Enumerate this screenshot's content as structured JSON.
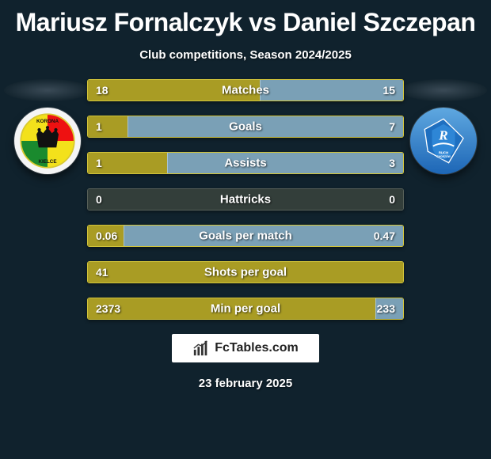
{
  "title": "Mariusz Fornalczyk vs Daniel Szczepan",
  "subtitle": "Club competitions, Season 2024/2025",
  "date": "23 february 2025",
  "footer_brand": "FcTables.com",
  "colors": {
    "background": "#10222d",
    "left_fill": "#a99c24",
    "left_border": "#d2c43a",
    "right_fill": "#7aa0b6",
    "right_border": "#a6c3d3",
    "neutral_fill": "#333e3a",
    "neutral_border": "#576059"
  },
  "bars": [
    {
      "label": "Matches",
      "left_val": "18",
      "right_val": "15",
      "left_pct": 54.5,
      "right_pct": 45.5,
      "style": "color"
    },
    {
      "label": "Goals",
      "left_val": "1",
      "right_val": "7",
      "left_pct": 12.5,
      "right_pct": 87.5,
      "style": "color"
    },
    {
      "label": "Assists",
      "left_val": "1",
      "right_val": "3",
      "left_pct": 25.0,
      "right_pct": 75.0,
      "style": "color"
    },
    {
      "label": "Hattricks",
      "left_val": "0",
      "right_val": "0",
      "left_pct": 50.0,
      "right_pct": 50.0,
      "style": "neutral"
    },
    {
      "label": "Goals per match",
      "left_val": "0.06",
      "right_val": "0.47",
      "left_pct": 11.3,
      "right_pct": 88.7,
      "style": "color"
    },
    {
      "label": "Shots per goal",
      "left_val": "41",
      "right_val": "",
      "left_pct": 100,
      "right_pct": 0,
      "style": "left_only"
    },
    {
      "label": "Min per goal",
      "left_val": "2373",
      "right_val": "233",
      "left_pct": 91.1,
      "right_pct": 8.9,
      "style": "color"
    }
  ],
  "crest_left": {
    "club": "KORONA",
    "city": "KIELCE"
  },
  "crest_right": {
    "club": "RUCH",
    "city": "CHORZÓW"
  }
}
